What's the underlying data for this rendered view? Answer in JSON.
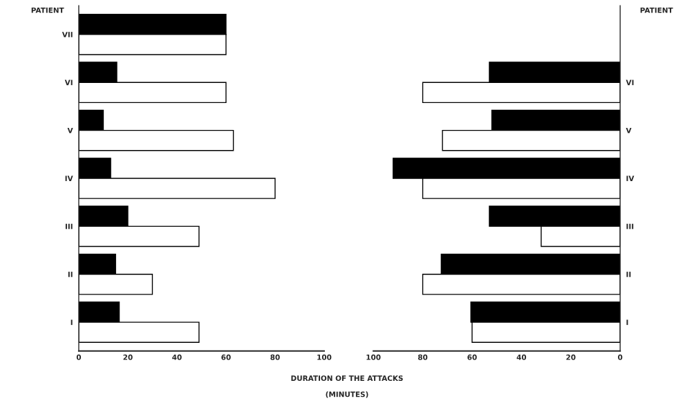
{
  "chart_data": [
    {
      "type": "bar",
      "orientation": "horizontal",
      "ylabel": "PATIENT",
      "categories": [
        "VII",
        "VI",
        "V",
        "IV",
        "III",
        "II",
        "I"
      ],
      "series": [
        {
          "color": "#000000",
          "values": [
            60,
            15.5,
            10,
            13,
            20,
            15,
            16.5
          ]
        },
        {
          "color": "#ffffff",
          "values": [
            60,
            60,
            63,
            80,
            49,
            30,
            49
          ]
        }
      ],
      "xlim": [
        0,
        100
      ],
      "xticks": [
        0,
        20,
        40,
        60,
        80,
        100
      ],
      "grid": false,
      "annotations": [
        "DURATION OF THE ATTACKS",
        "(MINUTES)"
      ]
    },
    {
      "type": "bar",
      "orientation": "horizontal",
      "ylabel": "PATIENT",
      "categories": [
        null,
        "VI",
        "V",
        "IV",
        "III",
        "II",
        "I"
      ],
      "series": [
        {
          "color": "#000000",
          "values": [
            null,
            53,
            52,
            92,
            53,
            72.5,
            60.5
          ]
        },
        {
          "color": "#ffffff",
          "values": [
            null,
            80,
            72,
            80,
            32,
            80,
            60
          ]
        }
      ],
      "xlim": [
        100,
        0
      ],
      "xticks": [
        100,
        80,
        60,
        40,
        20,
        0
      ],
      "grid": false
    }
  ]
}
